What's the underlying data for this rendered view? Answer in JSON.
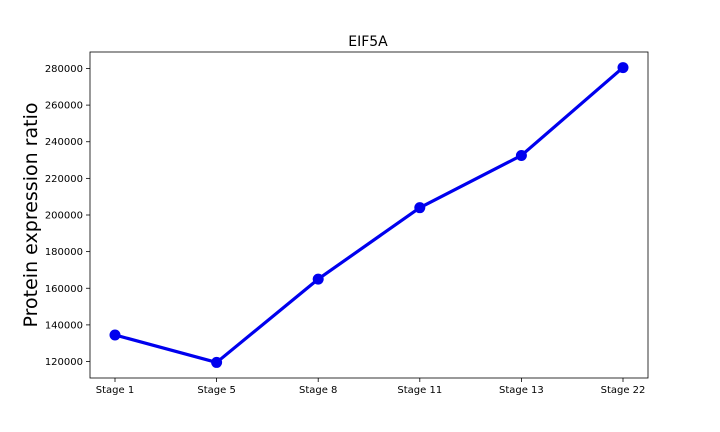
{
  "chart_data": {
    "type": "line",
    "title": "EIF5A",
    "xlabel": "",
    "ylabel": "Protein expression ratio",
    "categories": [
      "Stage 1",
      "Stage 5",
      "Stage 8",
      "Stage 11",
      "Stage 13",
      "Stage 22"
    ],
    "series": [
      {
        "values": [
          134500,
          119500,
          165000,
          204000,
          232500,
          280500
        ],
        "color": "#0000ee"
      }
    ],
    "yticks": [
      120000,
      140000,
      160000,
      180000,
      200000,
      220000,
      240000,
      260000,
      280000
    ],
    "ytick_labels": [
      "120000",
      "140000",
      "160000",
      "180000",
      "200000",
      "220000",
      "240000",
      "260000",
      "280000"
    ],
    "ylim": [
      111000,
      289000
    ],
    "grid": false,
    "legend": "none"
  }
}
